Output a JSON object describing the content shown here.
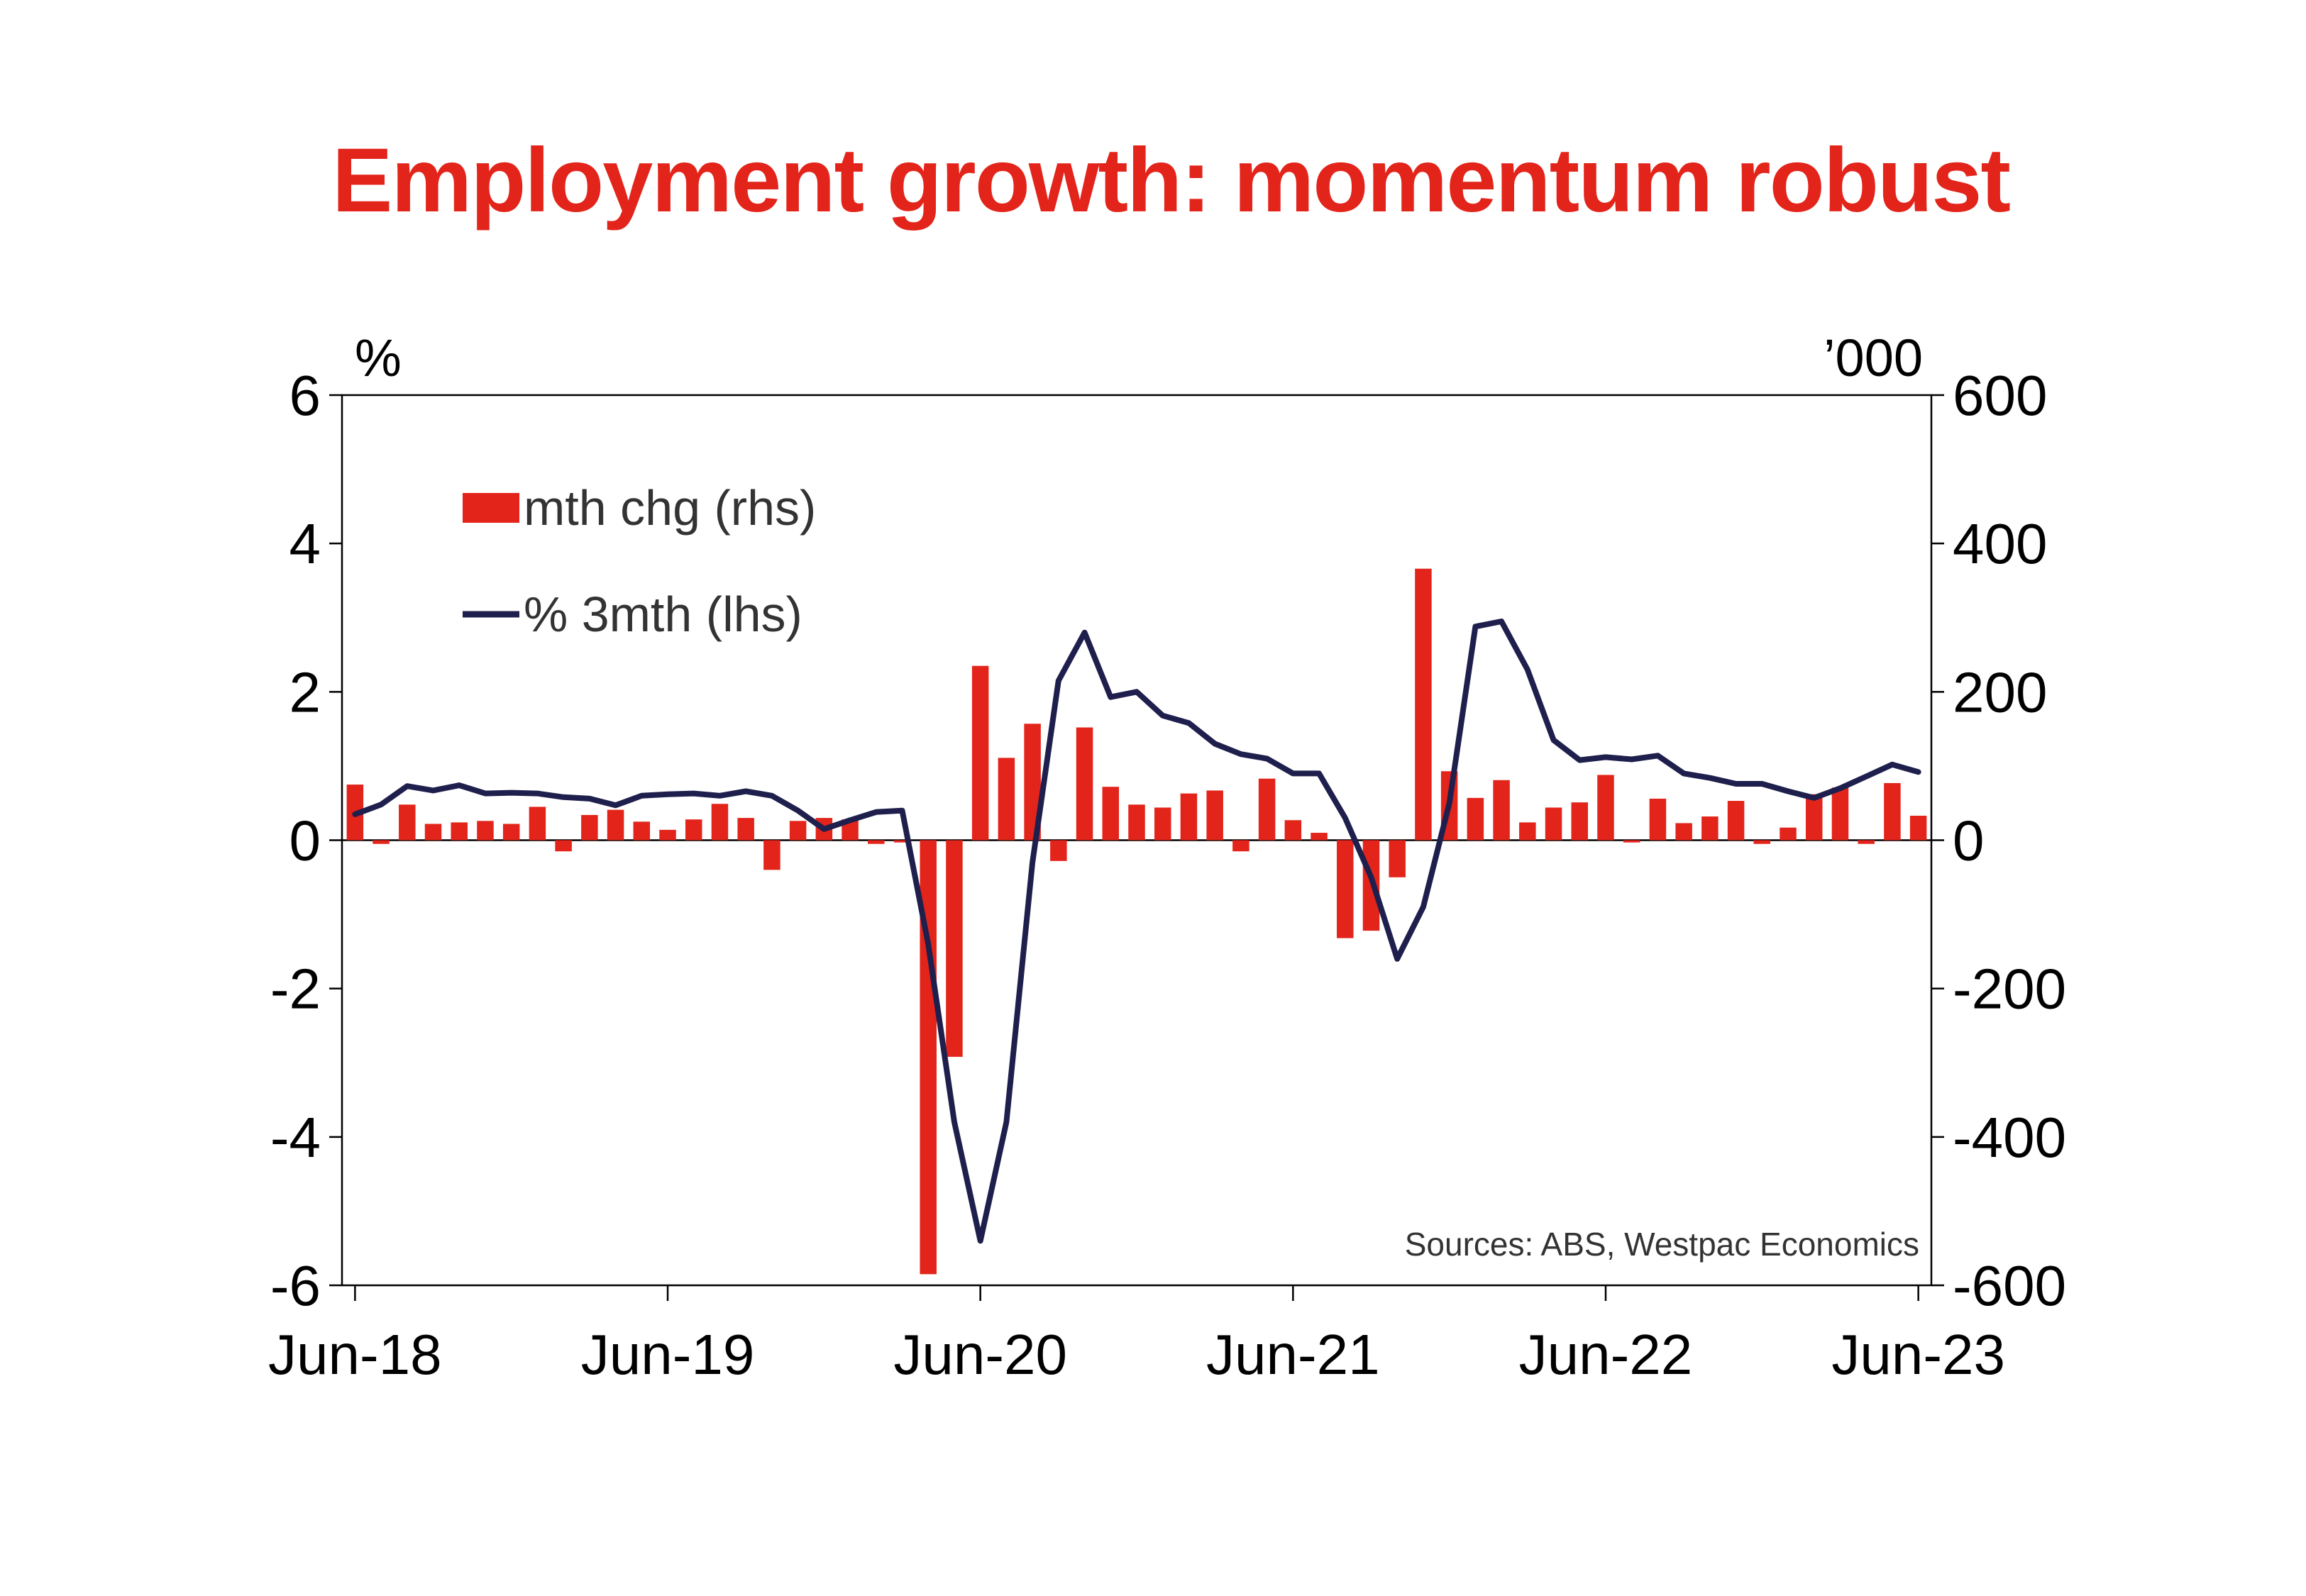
{
  "chart_data": {
    "type": "bar+line",
    "title": "Employment growth: momentum robust",
    "left_axis": {
      "unit": "%",
      "ylim": [
        -6,
        6
      ],
      "ticks": [
        "6",
        "4",
        "2",
        "0",
        "-2",
        "-4",
        "-6"
      ]
    },
    "right_axis": {
      "unit": "’000",
      "ylim": [
        -600,
        600
      ],
      "ticks": [
        "600",
        "400",
        "200",
        "0",
        "-200",
        "-400",
        "-600"
      ]
    },
    "x_axis": {
      "start": "Jun-18",
      "end": "Jun-23",
      "tick_labels": [
        "Jun-18",
        "Jun-19",
        "Jun-20",
        "Jun-21",
        "Jun-22",
        "Jun-23"
      ]
    },
    "legend": [
      {
        "label": "mth chg (rhs)",
        "color": "#e3241b",
        "kind": "bar"
      },
      {
        "label": "% 3mth (lhs)",
        "color": "#1f1f4d",
        "kind": "line"
      }
    ],
    "source": "Sources: ABS, Westpac Economics",
    "months": [
      "Jun-18",
      "Jul-18",
      "Aug-18",
      "Sep-18",
      "Oct-18",
      "Nov-18",
      "Dec-18",
      "Jan-19",
      "Feb-19",
      "Mar-19",
      "Apr-19",
      "May-19",
      "Jun-19",
      "Jul-19",
      "Aug-19",
      "Sep-19",
      "Oct-19",
      "Nov-19",
      "Dec-19",
      "Jan-20",
      "Feb-20",
      "Mar-20",
      "Apr-20",
      "May-20",
      "Jun-20",
      "Jul-20",
      "Aug-20",
      "Sep-20",
      "Oct-20",
      "Nov-20",
      "Dec-20",
      "Jan-21",
      "Feb-21",
      "Mar-21",
      "Apr-21",
      "May-21",
      "Jun-21",
      "Jul-21",
      "Aug-21",
      "Sep-21",
      "Oct-21",
      "Nov-21",
      "Dec-21",
      "Jan-22",
      "Feb-22",
      "Mar-22",
      "Apr-22",
      "May-22",
      "Jun-22",
      "Jul-22",
      "Aug-22",
      "Sep-22",
      "Oct-22",
      "Nov-22",
      "Dec-22",
      "Jan-23",
      "Feb-23",
      "Mar-23",
      "Apr-23",
      "May-23",
      "Jun-23"
    ],
    "series": [
      {
        "name": "mth chg (rhs)",
        "axis": "right",
        "values": [
          75,
          -5,
          48,
          22,
          24,
          26,
          22,
          45,
          -15,
          34,
          41,
          25,
          14,
          28,
          49,
          30,
          -40,
          26,
          30,
          28,
          -5,
          -3,
          -585,
          -292,
          235,
          111,
          157,
          -28,
          152,
          72,
          48,
          44,
          63,
          67,
          -15,
          83,
          27,
          10,
          -132,
          -122,
          -50,
          366,
          93,
          57,
          81,
          24,
          44,
          51,
          88,
          -3,
          56,
          23,
          32,
          53,
          -5,
          17,
          62,
          71,
          -5,
          77,
          33
        ]
      },
      {
        "name": "% 3mth (lhs)",
        "axis": "left",
        "values": [
          0.35,
          0.48,
          0.73,
          0.67,
          0.74,
          0.63,
          0.64,
          0.63,
          0.58,
          0.56,
          0.47,
          0.6,
          0.62,
          0.63,
          0.6,
          0.66,
          0.6,
          0.4,
          0.15,
          0.27,
          0.38,
          0.4,
          -1.4,
          -3.8,
          -5.4,
          -3.8,
          -0.3,
          2.15,
          2.8,
          1.93,
          2.0,
          1.68,
          1.58,
          1.3,
          1.16,
          1.1,
          0.9,
          0.9,
          0.3,
          -0.5,
          -1.6,
          -0.9,
          0.5,
          2.88,
          2.95,
          2.3,
          1.35,
          1.08,
          1.12,
          1.09,
          1.14,
          0.9,
          0.84,
          0.76,
          0.76,
          0.66,
          0.57,
          0.7,
          0.86,
          1.02,
          0.92
        ]
      }
    ]
  }
}
